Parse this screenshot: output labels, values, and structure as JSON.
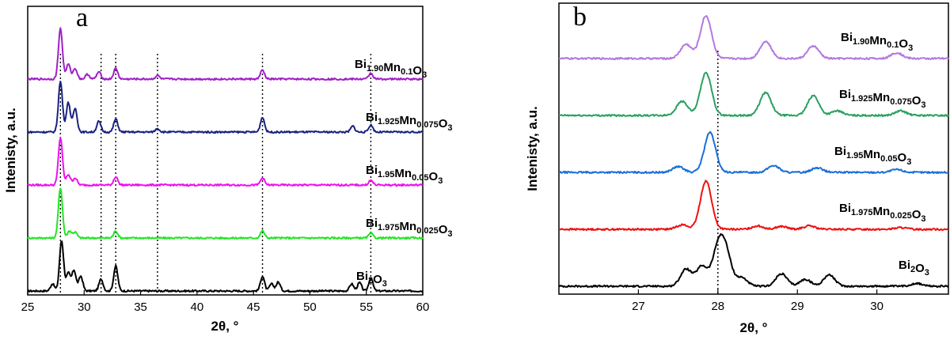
{
  "chart_data": [
    {
      "panel": "a",
      "type": "line",
      "title": "",
      "xlabel": "2θ, °",
      "ylabel": "Intenisty, a.u.",
      "xlim": [
        25,
        60
      ],
      "xticks": [
        "25",
        "30",
        "35",
        "40",
        "45",
        "50",
        "55",
        "60"
      ],
      "reference_lines_x": [
        27.9,
        31.5,
        32.8,
        36.5,
        45.8,
        55.4
      ],
      "series": [
        {
          "name": "Bi2O3",
          "label_main": "Bi",
          "label_parts": [
            [
              "Bi",
              ""
            ],
            [
              "2",
              "sub"
            ],
            [
              "O",
              ""
            ],
            [
              "3",
              "sub"
            ]
          ],
          "color": "#000000",
          "offset": 0,
          "peaks": [
            [
              27.2,
              12
            ],
            [
              28.0,
              85
            ],
            [
              28.6,
              30
            ],
            [
              29.1,
              35
            ],
            [
              29.7,
              25
            ],
            [
              31.5,
              20
            ],
            [
              32.8,
              42
            ],
            [
              45.8,
              25
            ],
            [
              46.6,
              12
            ],
            [
              47.2,
              15
            ],
            [
              53.7,
              12
            ],
            [
              54.4,
              14
            ],
            [
              55.4,
              22
            ]
          ]
        },
        {
          "name": "Bi1.975Mn0.025O3",
          "label_parts": [
            [
              "Bi",
              ""
            ],
            [
              "1.975",
              "sub"
            ],
            [
              "Mn",
              ""
            ],
            [
              "0.025",
              "sub"
            ],
            [
              "O",
              ""
            ],
            [
              "3",
              "sub"
            ]
          ],
          "color": "#22e622",
          "offset": 1,
          "peaks": [
            [
              27.9,
              85
            ],
            [
              28.7,
              12
            ],
            [
              29.2,
              10
            ],
            [
              32.8,
              12
            ],
            [
              45.8,
              12
            ],
            [
              55.4,
              8
            ]
          ]
        },
        {
          "name": "Bi1.95Mn0.05O3",
          "label_parts": [
            [
              "Bi",
              ""
            ],
            [
              "1.95",
              "sub"
            ],
            [
              "Mn",
              ""
            ],
            [
              "0.05",
              "sub"
            ],
            [
              "O",
              ""
            ],
            [
              "3",
              "sub"
            ]
          ],
          "color": "#ee11ee",
          "offset": 2,
          "peaks": [
            [
              27.9,
              80
            ],
            [
              28.6,
              18
            ],
            [
              29.2,
              12
            ],
            [
              32.8,
              14
            ],
            [
              45.8,
              12
            ],
            [
              55.4,
              8
            ]
          ]
        },
        {
          "name": "Bi1.925Mn0.075O3",
          "label_parts": [
            [
              "Bi",
              ""
            ],
            [
              "1.925",
              "sub"
            ],
            [
              "Mn",
              ""
            ],
            [
              "0.075",
              "sub"
            ],
            [
              "O",
              ""
            ],
            [
              "3",
              "sub"
            ]
          ],
          "color": "#1a2380",
          "offset": 3,
          "peaks": [
            [
              27.9,
              85
            ],
            [
              28.6,
              50
            ],
            [
              29.2,
              40
            ],
            [
              31.3,
              18
            ],
            [
              32.8,
              22
            ],
            [
              36.5,
              6
            ],
            [
              45.8,
              25
            ],
            [
              53.8,
              10
            ],
            [
              55.4,
              12
            ]
          ]
        },
        {
          "name": "Bi1.90Mn0.1O3",
          "label_parts": [
            [
              "Bi",
              ""
            ],
            [
              "1.90",
              "sub"
            ],
            [
              "Mn",
              ""
            ],
            [
              "0.1",
              "sub"
            ],
            [
              "O",
              ""
            ],
            [
              "3",
              "sub"
            ]
          ],
          "color": "#a020c8",
          "offset": 4,
          "peaks": [
            [
              27.9,
              85
            ],
            [
              28.6,
              25
            ],
            [
              29.2,
              18
            ],
            [
              30.3,
              8
            ],
            [
              31.3,
              12
            ],
            [
              32.8,
              18
            ],
            [
              36.5,
              6
            ],
            [
              45.8,
              15
            ],
            [
              55.4,
              10
            ]
          ]
        }
      ]
    },
    {
      "panel": "b",
      "type": "line",
      "title": "",
      "xlabel": "2θ, °",
      "ylabel": "Intenisty, a.u.",
      "xlim": [
        26.0,
        30.9
      ],
      "xticks": [
        "27",
        "28",
        "29",
        "30"
      ],
      "reference_lines_x": [
        28.0
      ],
      "series": [
        {
          "name": "Bi2O3",
          "label_parts": [
            [
              "Bi",
              ""
            ],
            [
              "2",
              "sub"
            ],
            [
              "O",
              ""
            ],
            [
              "3",
              "sub"
            ]
          ],
          "color": "#000000",
          "offset": 0,
          "peaks": [
            [
              27.6,
              30
            ],
            [
              27.8,
              35
            ],
            [
              28.0,
              62
            ],
            [
              28.1,
              55
            ],
            [
              28.3,
              15
            ],
            [
              28.8,
              22
            ],
            [
              29.1,
              12
            ],
            [
              29.4,
              20
            ],
            [
              30.5,
              5
            ]
          ]
        },
        {
          "name": "Bi1.975Mn0.025O3",
          "label_parts": [
            [
              "Bi",
              ""
            ],
            [
              "1.975",
              "sub"
            ],
            [
              "Mn",
              ""
            ],
            [
              "0.025",
              "sub"
            ],
            [
              "O",
              ""
            ],
            [
              "3",
              "sub"
            ]
          ],
          "color": "#ee1111",
          "offset": 1,
          "peaks": [
            [
              27.55,
              8
            ],
            [
              27.85,
              85
            ],
            [
              28.5,
              6
            ],
            [
              28.8,
              5
            ],
            [
              29.15,
              6
            ],
            [
              30.3,
              3
            ]
          ]
        },
        {
          "name": "Bi1.95Mn0.05O3",
          "label_parts": [
            [
              "Bi",
              ""
            ],
            [
              "1.95",
              "sub"
            ],
            [
              "Mn",
              ""
            ],
            [
              "0.05",
              "sub"
            ],
            [
              "O",
              ""
            ],
            [
              "3",
              "sub"
            ]
          ],
          "color": "#1a6fd8",
          "offset": 2,
          "peaks": [
            [
              27.5,
              10
            ],
            [
              27.9,
              70
            ],
            [
              28.7,
              12
            ],
            [
              29.25,
              8
            ],
            [
              30.25,
              5
            ]
          ]
        },
        {
          "name": "Bi1.925Mn0.075O3",
          "label_parts": [
            [
              "Bi",
              ""
            ],
            [
              "1.925",
              "sub"
            ],
            [
              "Mn",
              ""
            ],
            [
              "0.075",
              "sub"
            ],
            [
              "O",
              ""
            ],
            [
              "3",
              "sub"
            ]
          ],
          "color": "#2aa060",
          "offset": 3,
          "peaks": [
            [
              27.55,
              25
            ],
            [
              27.85,
              75
            ],
            [
              28.6,
              40
            ],
            [
              29.2,
              35
            ],
            [
              29.5,
              8
            ],
            [
              30.3,
              8
            ]
          ]
        },
        {
          "name": "Bi1.90Mn0.1O3",
          "label_parts": [
            [
              "Bi",
              ""
            ],
            [
              "1.90",
              "sub"
            ],
            [
              "Mn",
              ""
            ],
            [
              "0.1",
              "sub"
            ],
            [
              "O",
              ""
            ],
            [
              "3",
              "sub"
            ]
          ],
          "color": "#b478e0",
          "offset": 4,
          "peaks": [
            [
              27.6,
              25
            ],
            [
              27.85,
              75
            ],
            [
              28.6,
              30
            ],
            [
              29.2,
              22
            ],
            [
              30.25,
              10
            ]
          ]
        }
      ]
    }
  ],
  "panels": {
    "a": {
      "letter": "a"
    },
    "b": {
      "letter": "b"
    }
  }
}
